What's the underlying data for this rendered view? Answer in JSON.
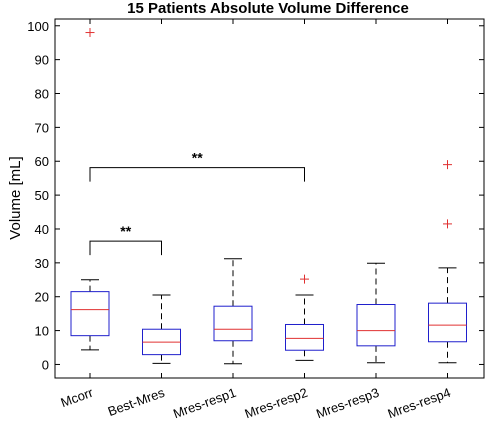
{
  "chart_data": {
    "type": "boxplot",
    "title": "15 Patients Absolute Volume Difference",
    "xlabel": "",
    "ylabel": "Volume [mL]",
    "ylim": [
      -4,
      102
    ],
    "yticks": [
      0,
      10,
      20,
      30,
      40,
      50,
      60,
      70,
      80,
      90,
      100
    ],
    "grid": false,
    "categories": [
      "Mcorr",
      "Best-Mres",
      "Mres-resp1",
      "Mres-resp2",
      "Mres-resp3",
      "Mres-resp4"
    ],
    "boxes": [
      {
        "whisker_low": 4.3,
        "q1": 8.5,
        "median": 16.2,
        "q3": 21.5,
        "whisker_high": 25.0,
        "outliers": [
          98.0
        ]
      },
      {
        "whisker_low": 0.3,
        "q1": 2.9,
        "median": 6.6,
        "q3": 10.4,
        "whisker_high": 20.5,
        "outliers": []
      },
      {
        "whisker_low": 0.2,
        "q1": 7.0,
        "median": 10.4,
        "q3": 17.2,
        "whisker_high": 31.2,
        "outliers": []
      },
      {
        "whisker_low": 1.2,
        "q1": 4.2,
        "median": 7.7,
        "q3": 11.8,
        "whisker_high": 20.5,
        "outliers": [
          25.2
        ]
      },
      {
        "whisker_low": 0.5,
        "q1": 5.5,
        "median": 10.0,
        "q3": 17.7,
        "whisker_high": 29.9,
        "outliers": []
      },
      {
        "whisker_low": 0.5,
        "q1": 6.7,
        "median": 11.6,
        "q3": 18.1,
        "whisker_high": 28.5,
        "outliers": [
          41.5,
          59.0
        ]
      }
    ],
    "significance": [
      {
        "from": "Mcorr",
        "to": "Best-Mres",
        "level": 36.4,
        "label": "**"
      },
      {
        "from": "Mcorr",
        "to": "Mres-resp2",
        "level": 58.1,
        "label": "**"
      }
    ],
    "colors": {
      "box": "#1f1fcc",
      "median": "#e03030",
      "outlier": "#e03030",
      "whisker": "#000000",
      "axis": "#000000"
    }
  }
}
